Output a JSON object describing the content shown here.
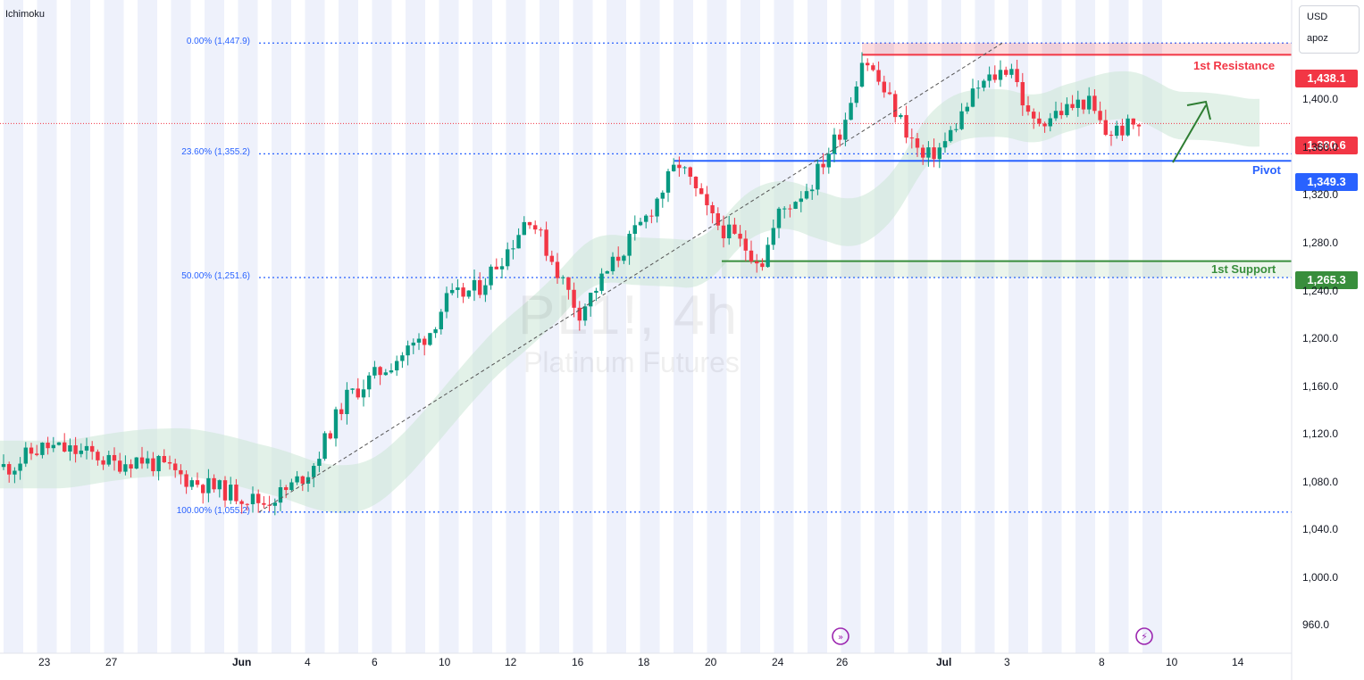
{
  "indicator": "Ichimoku",
  "currency": "USD",
  "account": "apoz",
  "watermark": {
    "symbol": "PL1!, 4h",
    "name": "Platinum Futures"
  },
  "levels": {
    "resistance": {
      "label": "1st Resistance",
      "price": 1438.1,
      "price_text": "1,438.1",
      "color": "#f23645"
    },
    "pivot": {
      "label": "Pivot",
      "price": 1349.3,
      "price_text": "1,349.3",
      "color": "#2962ff"
    },
    "support": {
      "label": "1st Support",
      "price": 1265.3,
      "price_text": "1,265.3",
      "color": "#388e3c"
    },
    "last": {
      "price": 1380.6,
      "price_text": "1,380.6",
      "color": "#f23645"
    }
  },
  "fib_levels": [
    {
      "label": "0.00% (1,447.9)",
      "price": 1447.9
    },
    {
      "label": "23.60% (1,355.2)",
      "price": 1355.2
    },
    {
      "label": "50.00% (1,251.6)",
      "price": 1251.6
    },
    {
      "label": "100.00% (1,055.2)",
      "price": 1055.2
    }
  ],
  "colors": {
    "up": "#089981",
    "down": "#f23645",
    "cloud": "#cfe8d8",
    "session_band": "#eef1fb"
  },
  "icons": [
    "replay-icon",
    "flash-icon"
  ],
  "chart_data": {
    "type": "candlestick",
    "symbol": "PL1!",
    "interval": "4h",
    "ylim": [
      940,
      1478
    ],
    "y_ticks": [
      {
        "value": 1400,
        "label": "1,400.0"
      },
      {
        "value": 1360,
        "label": "1,360.0"
      },
      {
        "value": 1320,
        "label": "1,320.0"
      },
      {
        "value": 1280,
        "label": "1,280.0"
      },
      {
        "value": 1240,
        "label": "1,240.0"
      },
      {
        "value": 1200,
        "label": "1,200.0"
      },
      {
        "value": 1160,
        "label": "1,160.0"
      },
      {
        "value": 1120,
        "label": "1,120.0"
      },
      {
        "value": 1080,
        "label": "1,080.0"
      },
      {
        "value": 1040,
        "label": "1,040.0"
      },
      {
        "value": 1000,
        "label": "1,000.0"
      },
      {
        "value": 960,
        "label": "960.0"
      }
    ],
    "x_ticks": [
      {
        "date": "2025-05-23",
        "label": "23"
      },
      {
        "date": "2025-05-27",
        "label": "27"
      },
      {
        "date": "2025-06-01",
        "label": "Jun"
      },
      {
        "date": "2025-06-04",
        "label": "4"
      },
      {
        "date": "2025-06-06",
        "label": "6"
      },
      {
        "date": "2025-06-10",
        "label": "10"
      },
      {
        "date": "2025-06-12",
        "label": "12"
      },
      {
        "date": "2025-06-16",
        "label": "16"
      },
      {
        "date": "2025-06-18",
        "label": "18"
      },
      {
        "date": "2025-06-20",
        "label": "20"
      },
      {
        "date": "2025-06-24",
        "label": "24"
      },
      {
        "date": "2025-06-26",
        "label": "26"
      },
      {
        "date": "2025-07-01",
        "label": "Jul"
      },
      {
        "date": "2025-07-03",
        "label": "3"
      },
      {
        "date": "2025-07-08",
        "label": "8"
      },
      {
        "date": "2025-07-10",
        "label": "10"
      },
      {
        "date": "2025-07-14",
        "label": "14"
      }
    ],
    "close_path": [
      {
        "date": "2025-05-21",
        "close": 1093
      },
      {
        "date": "2025-05-22",
        "close": 1104
      },
      {
        "date": "2025-05-23",
        "close": 1110
      },
      {
        "date": "2025-05-26",
        "close": 1103
      },
      {
        "date": "2025-05-27",
        "close": 1095
      },
      {
        "date": "2025-05-28",
        "close": 1100
      },
      {
        "date": "2025-05-29",
        "close": 1093
      },
      {
        "date": "2025-05-30",
        "close": 1082
      },
      {
        "date": "2025-06-02",
        "close": 1063
      },
      {
        "date": "2025-06-03",
        "close": 1074
      },
      {
        "date": "2025-06-04",
        "close": 1092
      },
      {
        "date": "2025-06-05",
        "close": 1150
      },
      {
        "date": "2025-06-06",
        "close": 1172
      },
      {
        "date": "2025-06-09",
        "close": 1205
      },
      {
        "date": "2025-06-10",
        "close": 1232
      },
      {
        "date": "2025-06-11",
        "close": 1243
      },
      {
        "date": "2025-06-12",
        "close": 1280
      },
      {
        "date": "2025-06-13",
        "close": 1305
      },
      {
        "date": "2025-06-16",
        "close": 1222
      },
      {
        "date": "2025-06-17",
        "close": 1262
      },
      {
        "date": "2025-06-18",
        "close": 1300
      },
      {
        "date": "2025-06-19",
        "close": 1348
      },
      {
        "date": "2025-06-20",
        "close": 1300
      },
      {
        "date": "2025-06-23",
        "close": 1265
      },
      {
        "date": "2025-06-24",
        "close": 1305
      },
      {
        "date": "2025-06-25",
        "close": 1330
      },
      {
        "date": "2025-06-26",
        "close": 1380
      },
      {
        "date": "2025-06-27",
        "close": 1438
      },
      {
        "date": "2025-06-30",
        "close": 1350
      },
      {
        "date": "2025-07-01",
        "close": 1362
      },
      {
        "date": "2025-07-02",
        "close": 1410
      },
      {
        "date": "2025-07-03",
        "close": 1430
      },
      {
        "date": "2025-07-04",
        "close": 1380
      },
      {
        "date": "2025-07-07",
        "close": 1400
      },
      {
        "date": "2025-07-08",
        "close": 1372
      },
      {
        "date": "2025-07-09",
        "close": 1380.6
      }
    ]
  }
}
